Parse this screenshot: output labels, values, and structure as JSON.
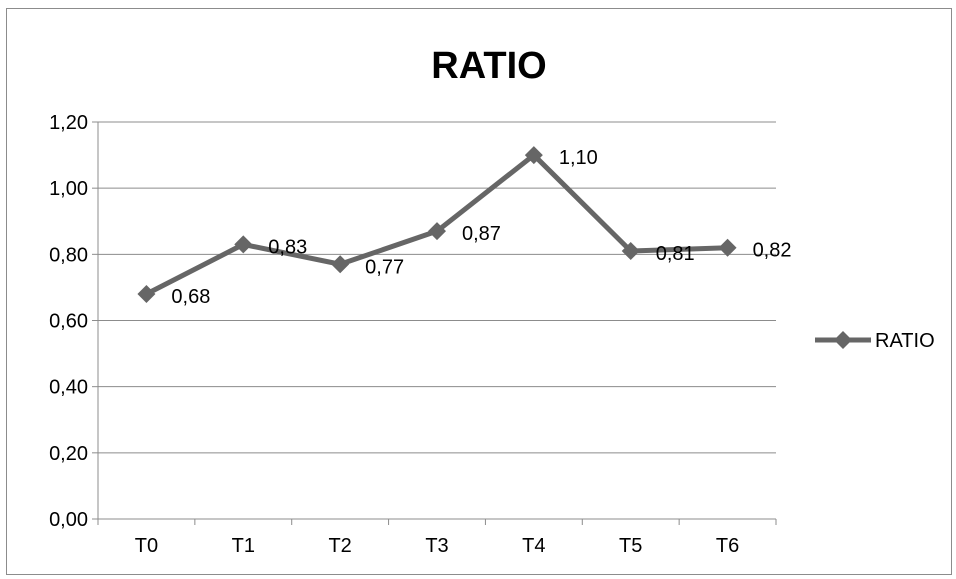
{
  "chart_data": {
    "type": "line",
    "title": "RATIO",
    "categories": [
      "T0",
      "T1",
      "T2",
      "T3",
      "T4",
      "T5",
      "T6"
    ],
    "series": [
      {
        "name": "RATIO",
        "values": [
          0.68,
          0.83,
          0.77,
          0.87,
          1.1,
          0.81,
          0.82
        ],
        "labels": [
          "0,68",
          "0,83",
          "0,77",
          "0,87",
          "1,10",
          "0,81",
          "0,82"
        ],
        "color": "#666666",
        "marker": "diamond"
      }
    ],
    "y_ticks": [
      "0,00",
      "0,20",
      "0,40",
      "0,60",
      "0,80",
      "1,00",
      "1,20"
    ],
    "ylim": [
      0,
      1.2
    ],
    "grid": true,
    "legend_position": "right"
  }
}
